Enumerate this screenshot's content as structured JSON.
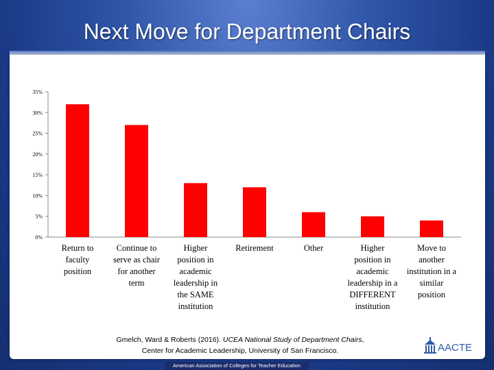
{
  "title": "Next Move for Department Chairs",
  "chart_data": {
    "type": "bar",
    "categories": [
      [
        "Return to",
        "faculty",
        "position"
      ],
      [
        "Continue to",
        "serve as chair",
        "for another",
        "term"
      ],
      [
        "Higher",
        "position in",
        "academic",
        "leadership in",
        "the SAME",
        "institution"
      ],
      [
        "Retirement"
      ],
      [
        "Other"
      ],
      [
        "Higher",
        "position in",
        "academic",
        "leadership in a",
        "DIFFERENT",
        "institution"
      ],
      [
        "Move to",
        "another",
        "institution in a",
        "similar",
        "position"
      ]
    ],
    "values": [
      32,
      27,
      13,
      12,
      6,
      5,
      4
    ],
    "ylim": [
      0,
      35
    ],
    "yticks": [
      "0%",
      "5%",
      "10%",
      "15%",
      "20%",
      "25%",
      "30%",
      "35%"
    ],
    "bar_color": "#ff0000",
    "grid": false
  },
  "citation": {
    "line1_prefix": "Gmelch, Ward & Roberts (2016). ",
    "line1_italic": "UCEA National Study of  Department Chairs",
    "line1_suffix": ",",
    "line2": "Center for Academic Leadership, University of San Francisco."
  },
  "footer": "American Association of Colleges for Teacher Education",
  "logo": {
    "text": "AACTE",
    "icon": "building-icon",
    "color": "#2c5aa8"
  }
}
